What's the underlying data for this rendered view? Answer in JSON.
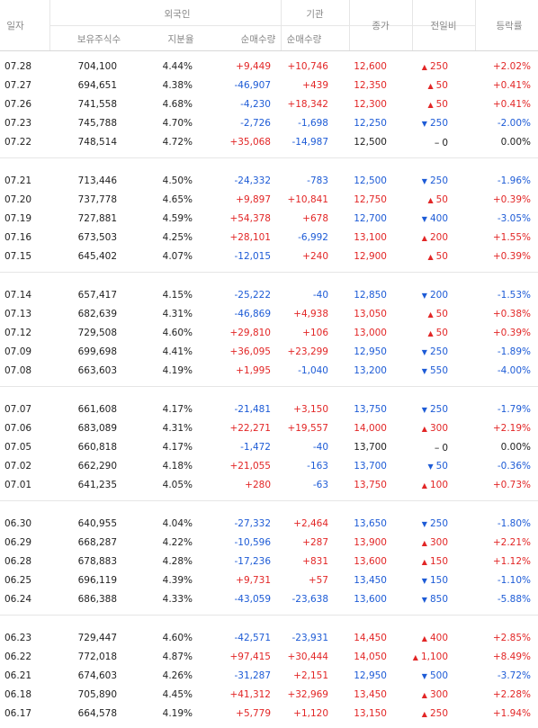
{
  "header": {
    "date": "일자",
    "foreign": "외국인",
    "institution": "기관",
    "holdings": "보유주식수",
    "ratio": "지분율",
    "foreign_net": "순매수량",
    "inst_net": "순매수량",
    "close": "종가",
    "change": "전일비",
    "rate": "등락률"
  },
  "groups": [
    [
      [
        "07.28",
        "704,100",
        "4.44%",
        "+9,449",
        "+10,746",
        "12,600",
        "up",
        "250",
        "+2.02%"
      ],
      [
        "07.27",
        "694,651",
        "4.38%",
        "-46,907",
        "+439",
        "12,350",
        "up",
        "50",
        "+0.41%"
      ],
      [
        "07.26",
        "741,558",
        "4.68%",
        "-4,230",
        "+18,342",
        "12,300",
        "up",
        "50",
        "+0.41%"
      ],
      [
        "07.23",
        "745,788",
        "4.70%",
        "-2,726",
        "-1,698",
        "12,250",
        "down",
        "250",
        "-2.00%"
      ],
      [
        "07.22",
        "748,514",
        "4.72%",
        "+35,068",
        "-14,987",
        "12,500",
        "flat",
        "0",
        "0.00%"
      ]
    ],
    [
      [
        "07.21",
        "713,446",
        "4.50%",
        "-24,332",
        "-783",
        "12,500",
        "down",
        "250",
        "-1.96%"
      ],
      [
        "07.20",
        "737,778",
        "4.65%",
        "+9,897",
        "+10,841",
        "12,750",
        "up",
        "50",
        "+0.39%"
      ],
      [
        "07.19",
        "727,881",
        "4.59%",
        "+54,378",
        "+678",
        "12,700",
        "down",
        "400",
        "-3.05%"
      ],
      [
        "07.16",
        "673,503",
        "4.25%",
        "+28,101",
        "-6,992",
        "13,100",
        "up",
        "200",
        "+1.55%"
      ],
      [
        "07.15",
        "645,402",
        "4.07%",
        "-12,015",
        "+240",
        "12,900",
        "up",
        "50",
        "+0.39%"
      ]
    ],
    [
      [
        "07.14",
        "657,417",
        "4.15%",
        "-25,222",
        "-40",
        "12,850",
        "down",
        "200",
        "-1.53%"
      ],
      [
        "07.13",
        "682,639",
        "4.31%",
        "-46,869",
        "+4,938",
        "13,050",
        "up",
        "50",
        "+0.38%"
      ],
      [
        "07.12",
        "729,508",
        "4.60%",
        "+29,810",
        "+106",
        "13,000",
        "up",
        "50",
        "+0.39%"
      ],
      [
        "07.09",
        "699,698",
        "4.41%",
        "+36,095",
        "+23,299",
        "12,950",
        "down",
        "250",
        "-1.89%"
      ],
      [
        "07.08",
        "663,603",
        "4.19%",
        "+1,995",
        "-1,040",
        "13,200",
        "down",
        "550",
        "-4.00%"
      ]
    ],
    [
      [
        "07.07",
        "661,608",
        "4.17%",
        "-21,481",
        "+3,150",
        "13,750",
        "down",
        "250",
        "-1.79%"
      ],
      [
        "07.06",
        "683,089",
        "4.31%",
        "+22,271",
        "+19,557",
        "14,000",
        "up",
        "300",
        "+2.19%"
      ],
      [
        "07.05",
        "660,818",
        "4.17%",
        "-1,472",
        "-40",
        "13,700",
        "flat",
        "0",
        "0.00%"
      ],
      [
        "07.02",
        "662,290",
        "4.18%",
        "+21,055",
        "-163",
        "13,700",
        "down",
        "50",
        "-0.36%"
      ],
      [
        "07.01",
        "641,235",
        "4.05%",
        "+280",
        "-63",
        "13,750",
        "up",
        "100",
        "+0.73%"
      ]
    ],
    [
      [
        "06.30",
        "640,955",
        "4.04%",
        "-27,332",
        "+2,464",
        "13,650",
        "down",
        "250",
        "-1.80%"
      ],
      [
        "06.29",
        "668,287",
        "4.22%",
        "-10,596",
        "+287",
        "13,900",
        "up",
        "300",
        "+2.21%"
      ],
      [
        "06.28",
        "678,883",
        "4.28%",
        "-17,236",
        "+831",
        "13,600",
        "up",
        "150",
        "+1.12%"
      ],
      [
        "06.25",
        "696,119",
        "4.39%",
        "+9,731",
        "+57",
        "13,450",
        "down",
        "150",
        "-1.10%"
      ],
      [
        "06.24",
        "686,388",
        "4.33%",
        "-43,059",
        "-23,638",
        "13,600",
        "down",
        "850",
        "-5.88%"
      ]
    ],
    [
      [
        "06.23",
        "729,447",
        "4.60%",
        "-42,571",
        "-23,931",
        "14,450",
        "up",
        "400",
        "+2.85%"
      ],
      [
        "06.22",
        "772,018",
        "4.87%",
        "+97,415",
        "+30,444",
        "14,050",
        "up",
        "1,100",
        "+8.49%"
      ],
      [
        "06.21",
        "674,603",
        "4.26%",
        "-31,287",
        "+2,151",
        "12,950",
        "down",
        "500",
        "-3.72%"
      ],
      [
        "06.18",
        "705,890",
        "4.45%",
        "+41,312",
        "+32,969",
        "13,450",
        "up",
        "300",
        "+2.28%"
      ],
      [
        "06.17",
        "664,578",
        "4.19%",
        "+5,779",
        "+1,120",
        "13,150",
        "up",
        "250",
        "+1.94%"
      ]
    ]
  ]
}
